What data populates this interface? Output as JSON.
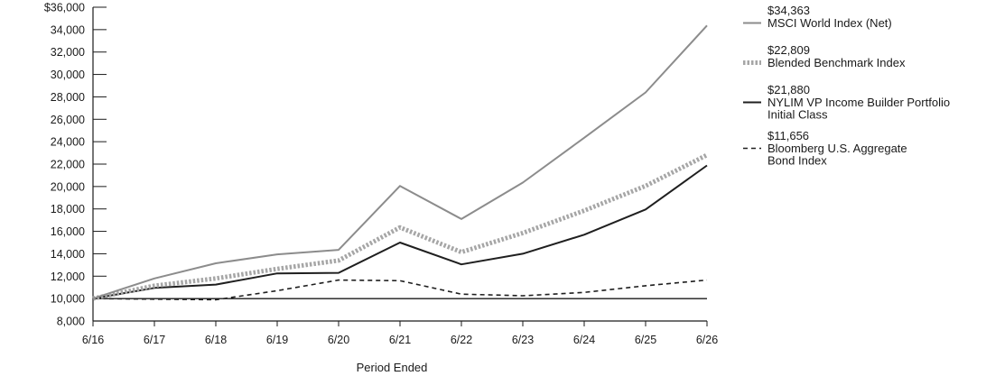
{
  "chart_data": {
    "type": "line",
    "title": "",
    "xlabel": "Period Ended",
    "ylabel": "",
    "categories": [
      "6/16",
      "6/17",
      "6/18",
      "6/19",
      "6/20",
      "6/21",
      "6/22",
      "6/23",
      "6/24",
      "6/25",
      "6/26"
    ],
    "ylim": [
      8000,
      36000
    ],
    "yticks": [
      8000,
      10000,
      12000,
      14000,
      16000,
      18000,
      20000,
      22000,
      24000,
      26000,
      28000,
      30000,
      32000,
      34000,
      36000
    ],
    "ytick_labels": [
      "8,000",
      "10,000",
      "12,000",
      "14,000",
      "16,000",
      "18,000",
      "20,000",
      "22,000",
      "24,000",
      "26,000",
      "28,000",
      "30,000",
      "32,000",
      "34,000",
      "$36,000"
    ],
    "baseline": 10000,
    "grid": false,
    "legend_position": "right",
    "series": [
      {
        "name": "MSCI World Index (Net)",
        "end_value_label": "$34,363",
        "style": "solid",
        "color": "#8c8c8c",
        "values": [
          10000,
          11800,
          13150,
          13950,
          14350,
          20050,
          17100,
          20350,
          24350,
          28400,
          34363
        ]
      },
      {
        "name": "Blended Benchmark Index",
        "end_value_label": "$22,809",
        "style": "thick-dotted",
        "color": "#a6a6a6",
        "values": [
          10000,
          11150,
          11800,
          12650,
          13400,
          16350,
          14150,
          15850,
          17850,
          20050,
          22809
        ]
      },
      {
        "name": "NYLIM VP Income Builder Portfolio Initial Class",
        "name_lines": [
          "NYLIM VP Income Builder Portfolio",
          "Initial Class"
        ],
        "end_value_label": "$21,880",
        "style": "solid",
        "color": "#1f1f1f",
        "values": [
          10000,
          10950,
          11250,
          12250,
          12300,
          15000,
          13050,
          14000,
          15700,
          17950,
          21880
        ]
      },
      {
        "name": "Bloomberg U.S. Aggregate Bond Index",
        "name_lines": [
          "Bloomberg U.S. Aggregate",
          "Bond Index"
        ],
        "end_value_label": "$11,656",
        "style": "dashed",
        "color": "#1f1f1f",
        "values": [
          10000,
          9950,
          9900,
          10700,
          11650,
          11600,
          10400,
          10250,
          10550,
          11150,
          11656
        ]
      }
    ]
  }
}
